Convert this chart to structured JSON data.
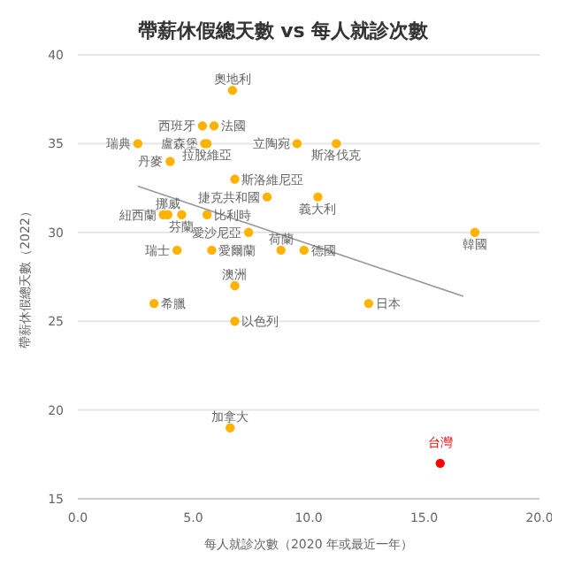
{
  "chart_data": {
    "type": "scatter",
    "title": "帶薪休假總天數 vs 每人就診次數",
    "xlabel": "每人就診次數（2020 年或最近一年）",
    "ylabel": "帶薪休假總天數（2022）",
    "xlim": [
      0,
      20
    ],
    "xticks": [
      {
        "value": 0,
        "label": "0.0"
      },
      {
        "value": 5,
        "label": "5.0"
      },
      {
        "value": 10,
        "label": "10.0"
      },
      {
        "value": 15,
        "label": "15.0"
      },
      {
        "value": 20,
        "label": "20.0"
      }
    ],
    "ylim": [
      15,
      40
    ],
    "yticks": [
      15,
      20,
      25,
      30,
      35,
      40
    ],
    "grid": "y",
    "legend": false,
    "marker": "circle",
    "series": [
      {
        "color": "#ffb300",
        "x": [
          6.7,
          5.4,
          5.9,
          2.6,
          5.5,
          5.6,
          9.5,
          11.2,
          4.0,
          6.8,
          8.2,
          10.4,
          3.7,
          3.9,
          4.5,
          5.6,
          7.4,
          4.3,
          5.8,
          8.8,
          9.8,
          17.2,
          6.8,
          3.3,
          6.8,
          12.6,
          6.6
        ],
        "values": [
          38,
          36,
          36,
          35,
          35,
          35,
          35,
          35,
          34,
          33,
          32,
          32,
          31,
          31,
          31,
          31,
          30,
          29,
          29,
          29,
          29,
          30,
          27,
          26,
          25,
          26,
          19
        ]
      },
      {
        "name": "台灣",
        "color": "#ff0000",
        "x": [
          15.7
        ],
        "values": [
          17
        ]
      },
      {
        "type": "line",
        "color": "#999999",
        "marker": "none",
        "x": [
          2.6,
          16.7
        ],
        "values": [
          32.6,
          26.4
        ]
      }
    ],
    "annotations": [
      {
        "text": "奧地利",
        "x": 6.7,
        "y": 38
      },
      {
        "text": "西班牙",
        "x": 5.4,
        "y": 36
      },
      {
        "text": "法國",
        "x": 5.9,
        "y": 36
      },
      {
        "text": "瑞典",
        "x": 2.6,
        "y": 35
      },
      {
        "text": "盧森堡",
        "x": 5.5,
        "y": 35
      },
      {
        "text": "拉脫維亞",
        "x": 5.6,
        "y": 35
      },
      {
        "text": "立陶宛",
        "x": 9.5,
        "y": 35
      },
      {
        "text": "斯洛伐克",
        "x": 11.2,
        "y": 35
      },
      {
        "text": "丹麥",
        "x": 4.0,
        "y": 34
      },
      {
        "text": "斯洛維尼亞",
        "x": 6.8,
        "y": 33
      },
      {
        "text": "捷克共和國",
        "x": 8.2,
        "y": 32
      },
      {
        "text": "義大利",
        "x": 10.4,
        "y": 32
      },
      {
        "text": "紐西蘭",
        "x": 3.7,
        "y": 31
      },
      {
        "text": "挪威",
        "x": 3.9,
        "y": 31
      },
      {
        "text": "芬蘭",
        "x": 4.5,
        "y": 31
      },
      {
        "text": "比利時",
        "x": 5.6,
        "y": 31
      },
      {
        "text": "愛沙尼亞",
        "x": 7.4,
        "y": 30
      },
      {
        "text": "瑞士",
        "x": 4.3,
        "y": 29
      },
      {
        "text": "愛爾蘭",
        "x": 5.8,
        "y": 29
      },
      {
        "text": "荷蘭",
        "x": 8.8,
        "y": 29
      },
      {
        "text": "德國",
        "x": 9.8,
        "y": 29
      },
      {
        "text": "韓國",
        "x": 17.2,
        "y": 30
      },
      {
        "text": "澳洲",
        "x": 6.8,
        "y": 27
      },
      {
        "text": "希臘",
        "x": 3.3,
        "y": 26
      },
      {
        "text": "以色列",
        "x": 6.8,
        "y": 25
      },
      {
        "text": "日本",
        "x": 12.6,
        "y": 26
      },
      {
        "text": "加拿大",
        "x": 6.6,
        "y": 19
      }
    ]
  }
}
